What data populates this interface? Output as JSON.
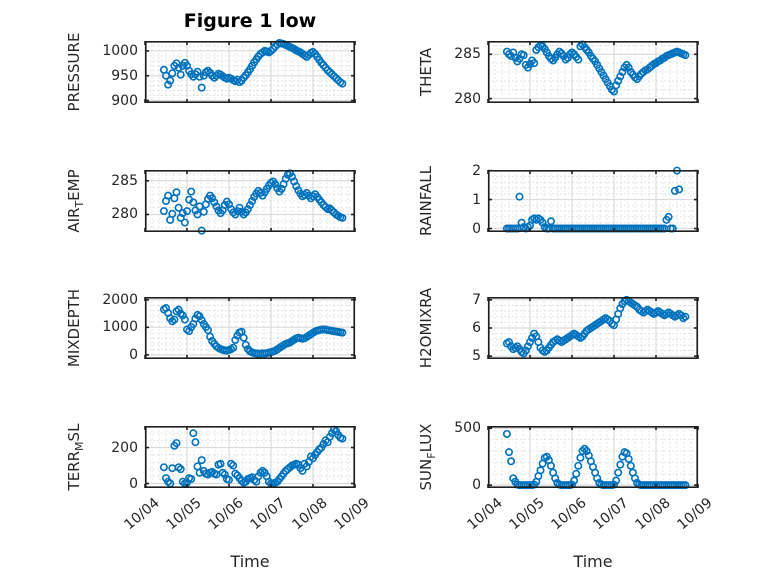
{
  "colors": {
    "marker": "#0072BD",
    "axis_box": "#1f1f1f",
    "grid_major": "#dcdcdc",
    "grid_minor": "#c9c9c9",
    "text": "#262626",
    "background": "#ffffff"
  },
  "chart_data": {
    "type": "scatter",
    "title": "Figure 1 low",
    "xlabel": "Time",
    "marker": "open-circle",
    "grid": "major-solid-minor-dotted",
    "xlim": [
      0,
      5
    ],
    "xticks": {
      "values": [
        0,
        1,
        2,
        3,
        4,
        5
      ],
      "labels": [
        "10/04",
        "10/05",
        "10/06",
        "10/07",
        "10/08",
        "10/09"
      ]
    },
    "x_minor_step": 0.16667,
    "x0": 0.45,
    "dx": 0.05,
    "x_unit": "days-after-10/04",
    "subplots": [
      {
        "id": "PRESSURE",
        "row": 0,
        "col": 0,
        "label_parts": [
          {
            "t": "PRESSURE"
          }
        ],
        "ylim": [
          895,
          1020
        ],
        "minor_y_step": 10,
        "yticks": {
          "values": [
            900,
            950,
            1000
          ],
          "labels": [
            "900",
            "950",
            "1000"
          ]
        },
        "values": [
          962,
          950,
          932,
          940,
          955,
          970,
          975,
          966,
          952,
          970,
          976,
          970,
          960,
          953,
          948,
          953,
          958,
          948,
          926,
          950,
          957,
          960,
          956,
          950,
          946,
          950,
          954,
          952,
          949,
          946,
          944,
          946,
          944,
          941,
          939,
          942,
          937,
          940,
          946,
          951,
          957,
          963,
          970,
          977,
          983,
          989,
          994,
          997,
          1000,
          999,
          997,
          1000,
          1004,
          1009,
          1013,
          1016,
          1015,
          1014,
          1012,
          1010,
          1008,
          1006,
          1004,
          1001,
          999,
          997,
          994,
          991,
          988,
          992,
          996,
          998,
          994,
          988,
          982,
          976,
          971,
          966,
          961,
          957,
          953,
          949,
          945,
          941,
          937,
          934
        ]
      },
      {
        "id": "THETA",
        "row": 0,
        "col": 1,
        "label_parts": [
          {
            "t": "THETA"
          }
        ],
        "ylim": [
          279.5,
          286.5
        ],
        "minor_y_step": 1,
        "yticks": {
          "values": [
            280,
            285
          ],
          "labels": [
            "280",
            "285"
          ]
        },
        "values": [
          285.3,
          285,
          284.8,
          285.2,
          284.6,
          284.2,
          284.5,
          285,
          284.9,
          283.8,
          283.5,
          283.9,
          284.3,
          284,
          285.5,
          285.8,
          286,
          285.9,
          285.6,
          285.2,
          284.8,
          284.5,
          284.3,
          284.6,
          285,
          285.3,
          285.1,
          284.8,
          284.4,
          284.6,
          285,
          285.2,
          285,
          284.7,
          284.4,
          285.9,
          286.1,
          285.8,
          285.5,
          285.2,
          284.8,
          284.5,
          284.2,
          283.8,
          283.4,
          283,
          282.6,
          282.2,
          281.8,
          281.4,
          281,
          280.8,
          281.5,
          282,
          282.5,
          283,
          283.5,
          283.8,
          283.5,
          283,
          282.7,
          282.4,
          282.2,
          282.5,
          282.8,
          283,
          283.2,
          283.3,
          283.5,
          283.7,
          283.9,
          284,
          284.2,
          284.3,
          284.5,
          284.6,
          284.8,
          284.9,
          285,
          285.1,
          285.2,
          285.3,
          285.2,
          285.1,
          285,
          284.9
        ]
      },
      {
        "id": "AIR_TEMP",
        "row": 1,
        "col": 0,
        "label_parts": [
          {
            "t": "AIR"
          },
          {
            "t": "T",
            "sub": true
          },
          {
            "t": "EMP"
          }
        ],
        "ylim": [
          277.4,
          286.6
        ],
        "minor_y_step": 1,
        "yticks": {
          "values": [
            280,
            285
          ],
          "labels": [
            "280",
            "285"
          ]
        },
        "values": [
          280.5,
          282,
          282.8,
          279.2,
          280.1,
          282.4,
          283.3,
          281,
          279.5,
          280.2,
          278.8,
          280.5,
          282.2,
          283.4,
          281.8,
          280.6,
          280,
          281.2,
          277.6,
          280.4,
          281.5,
          282.3,
          282.8,
          282.4,
          281.8,
          281.2,
          280.6,
          280.2,
          280.6,
          281.4,
          281.9,
          281.5,
          280.8,
          280.3,
          280,
          280.5,
          281,
          280.4,
          280,
          280.3,
          280.8,
          281.4,
          282,
          282.6,
          283.1,
          283.5,
          283.2,
          282.8,
          283.3,
          283.8,
          284.3,
          284.7,
          284.9,
          284.5,
          283.9,
          283.4,
          283.8,
          284.5,
          285.3,
          285.9,
          286.1,
          285.6,
          284.9,
          284.2,
          283.6,
          283.1,
          282.7,
          282.9,
          283.2,
          282.8,
          282.4,
          282.7,
          283,
          282.6,
          282.2,
          281.8,
          281.4,
          281.1,
          280.8,
          280.9,
          280.6,
          280.3,
          280,
          279.8,
          279.6,
          279.5
        ]
      },
      {
        "id": "RAINFALL",
        "row": 1,
        "col": 1,
        "label_parts": [
          {
            "t": "RAINFALL"
          }
        ],
        "ylim": [
          -0.12,
          2.02
        ],
        "minor_y_step": 0.2,
        "yticks": {
          "values": [
            0,
            1,
            2
          ],
          "labels": [
            "0",
            "1",
            "2"
          ]
        },
        "values": [
          0,
          0,
          0,
          0,
          0,
          0,
          1.1,
          0.2,
          0.05,
          0,
          0.05,
          0.1,
          0.3,
          0.35,
          0.3,
          0.35,
          0.3,
          0.2,
          0.05,
          0,
          0,
          0.25,
          0,
          0,
          0,
          0,
          0,
          0,
          0,
          0,
          0,
          0,
          0,
          0,
          0,
          0,
          0,
          0,
          0,
          0,
          0,
          0,
          0,
          0,
          0,
          0,
          0,
          0,
          0,
          0,
          0,
          0,
          0,
          0,
          0,
          0,
          0,
          0,
          0,
          0,
          0,
          0,
          0,
          0,
          0,
          0,
          0,
          0,
          0,
          0,
          0,
          0,
          0,
          0,
          0,
          0,
          0.3,
          0.4,
          0,
          0,
          1.3,
          2,
          1.35,
          null,
          null,
          null
        ]
      },
      {
        "id": "MIXDEPTH",
        "row": 2,
        "col": 0,
        "label_parts": [
          {
            "t": "MIXDEPTH"
          }
        ],
        "ylim": [
          -150,
          2100
        ],
        "minor_y_step": 200,
        "yticks": {
          "values": [
            0,
            1000,
            2000
          ],
          "labels": [
            "0",
            "1000",
            "2000"
          ]
        },
        "values": [
          1650,
          1700,
          1520,
          1330,
          1220,
          1280,
          1580,
          1640,
          1500,
          1430,
          1280,
          920,
          860,
          1010,
          1120,
          1320,
          1450,
          1400,
          1260,
          1120,
          1010,
          900,
          660,
          500,
          400,
          310,
          250,
          210,
          185,
          160,
          155,
          175,
          205,
          260,
          540,
          700,
          810,
          840,
          620,
          360,
          210,
          130,
          90,
          65,
          50,
          40,
          45,
          55,
          50,
          60,
          80,
          100,
          120,
          150,
          200,
          250,
          300,
          350,
          395,
          420,
          450,
          500,
          550,
          600,
          620,
          605,
          585,
          605,
          650,
          700,
          750,
          800,
          850,
          880,
          900,
          915,
          925,
          915,
          900,
          885,
          870,
          855,
          845,
          835,
          820,
          805
        ]
      },
      {
        "id": "H2OMIXRA",
        "row": 2,
        "col": 1,
        "label_parts": [
          {
            "t": "H2OMIXRA"
          }
        ],
        "ylim": [
          4.9,
          7.1
        ],
        "minor_y_step": 0.2,
        "yticks": {
          "values": [
            5,
            6,
            7
          ],
          "labels": [
            "5",
            "6",
            "7"
          ]
        },
        "values": [
          5.45,
          5.5,
          5.35,
          5.25,
          5.3,
          5.35,
          5.25,
          5.15,
          5.1,
          5.2,
          5.35,
          5.5,
          5.65,
          5.8,
          5.7,
          5.5,
          5.3,
          5.2,
          5.15,
          5.2,
          5.3,
          5.4,
          5.5,
          5.55,
          5.6,
          5.55,
          5.5,
          5.55,
          5.6,
          5.65,
          5.7,
          5.75,
          5.8,
          5.75,
          5.7,
          5.65,
          5.7,
          5.8,
          5.9,
          5.95,
          6,
          6.05,
          6.1,
          6.15,
          6.2,
          6.25,
          6.3,
          6.35,
          6.3,
          6.25,
          6.15,
          6.1,
          6.3,
          6.5,
          6.7,
          6.85,
          6.95,
          7,
          6.95,
          6.9,
          6.85,
          6.8,
          6.75,
          6.65,
          6.6,
          6.55,
          6.6,
          6.65,
          6.6,
          6.55,
          6.5,
          6.55,
          6.6,
          6.55,
          6.5,
          6.45,
          6.5,
          6.55,
          6.5,
          6.45,
          6.4,
          6.45,
          6.5,
          6.45,
          6.35,
          6.4
        ]
      },
      {
        "id": "TERR_MSL",
        "row": 3,
        "col": 0,
        "label_parts": [
          {
            "t": "TERR"
          },
          {
            "t": "M",
            "sub": true
          },
          {
            "t": "SL"
          }
        ],
        "ylim": [
          -25,
          320
        ],
        "minor_y_step": 40,
        "yticks": {
          "values": [
            0,
            200
          ],
          "labels": [
            "0",
            "200"
          ]
        },
        "values": [
          90,
          30,
          10,
          0,
          85,
          210,
          225,
          90,
          80,
          10,
          0,
          5,
          30,
          25,
          280,
          230,
          95,
          60,
          130,
          70,
          55,
          50,
          60,
          65,
          55,
          50,
          105,
          110,
          60,
          50,
          25,
          20,
          110,
          100,
          55,
          45,
          30,
          15,
          5,
          10,
          25,
          30,
          35,
          20,
          10,
          40,
          60,
          70,
          60,
          40,
          10,
          0,
          0,
          5,
          10,
          25,
          40,
          55,
          70,
          80,
          90,
          100,
          105,
          110,
          105,
          85,
          70,
          110,
          95,
          120,
          150,
          140,
          160,
          175,
          190,
          200,
          220,
          240,
          230,
          260,
          280,
          300,
          290,
          270,
          255,
          250
        ]
      },
      {
        "id": "SUN_FLUX",
        "row": 3,
        "col": 1,
        "label_parts": [
          {
            "t": "SUN"
          },
          {
            "t": "F",
            "sub": true
          },
          {
            "t": "LUX"
          }
        ],
        "ylim": [
          -25,
          520
        ],
        "minor_y_step": 100,
        "yticks": {
          "values": [
            0,
            500
          ],
          "labels": [
            "0",
            "500"
          ]
        },
        "values": [
          450,
          290,
          210,
          60,
          30,
          5,
          0,
          0,
          0,
          0,
          0,
          0,
          0,
          5,
          30,
          80,
          130,
          190,
          240,
          250,
          220,
          170,
          110,
          60,
          20,
          5,
          0,
          0,
          0,
          0,
          0,
          5,
          40,
          100,
          170,
          240,
          300,
          320,
          300,
          260,
          210,
          160,
          110,
          60,
          20,
          5,
          0,
          0,
          0,
          0,
          0,
          5,
          40,
          110,
          180,
          250,
          290,
          280,
          230,
          170,
          110,
          60,
          20,
          5,
          0,
          0,
          0,
          0,
          0,
          0,
          0,
          0,
          0,
          0,
          0,
          0,
          0,
          0,
          0,
          0,
          0,
          0,
          0,
          0,
          0,
          0
        ]
      }
    ]
  }
}
